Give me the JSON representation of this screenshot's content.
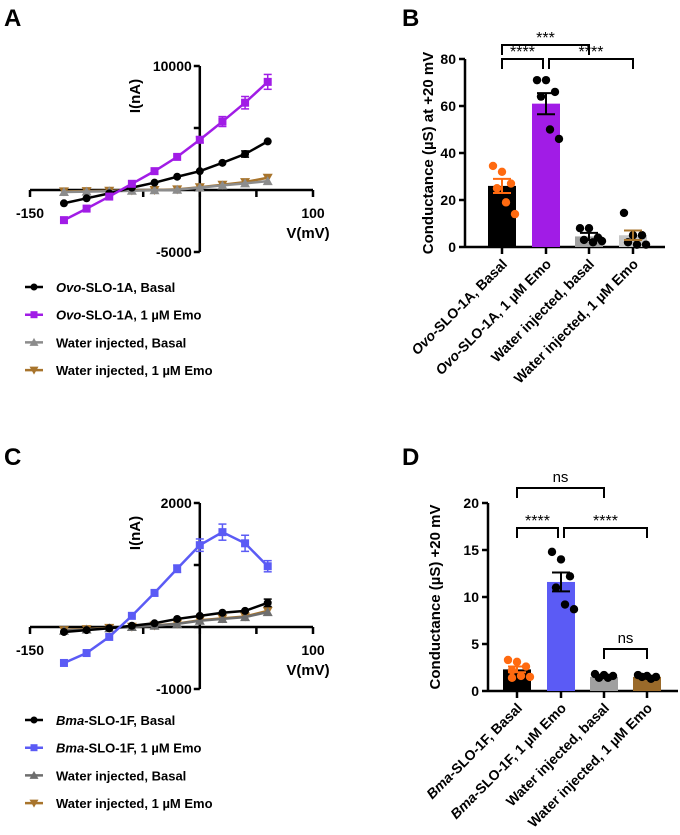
{
  "panels": {
    "A": "A",
    "B": "B",
    "C": "C",
    "D": "D"
  },
  "chart_data": [
    {
      "panel": "A",
      "type": "line",
      "xlabel": "V(mV)",
      "ylabel": "I(nA)",
      "xlim": [
        -150,
        100
      ],
      "ylim": [
        -5000,
        10000
      ],
      "x_tick_labels": [
        "-150",
        "100"
      ],
      "y_tick_labels": [
        "10000",
        "-5000"
      ],
      "x": [
        -120,
        -100,
        -80,
        -60,
        -40,
        -20,
        0,
        20,
        40,
        60
      ],
      "series": [
        {
          "name": "Ovo-SLO-1A, Basal",
          "italic": "Ovo",
          "color": "#000000",
          "marker": "circle",
          "values": [
            -1070,
            -670,
            -270,
            190,
            590,
            1070,
            1520,
            2190,
            2900,
            3920
          ],
          "err": [
            80,
            80,
            60,
            60,
            80,
            100,
            150,
            200,
            250,
            200
          ]
        },
        {
          "name": "Ovo-SLO-1A, 1 µM Emo",
          "italic": "Ovo",
          "color": "#A11CE6",
          "marker": "square",
          "values": [
            -2430,
            -1500,
            -530,
            500,
            1520,
            2670,
            4050,
            5520,
            7040,
            8720
          ],
          "err": [
            100,
            100,
            80,
            80,
            100,
            150,
            250,
            400,
            500,
            600
          ]
        },
        {
          "name": "Water injected, Basal",
          "color": "#8C8C8C",
          "marker": "triangle-up",
          "values": [
            -160,
            -130,
            -100,
            -60,
            -20,
            20,
            190,
            370,
            530,
            720
          ],
          "err": [
            40,
            40,
            40,
            40,
            40,
            40,
            60,
            60,
            80,
            100
          ]
        },
        {
          "name": "Water injected, 1 µM Emo",
          "color": "#A8742C",
          "marker": "triangle-down",
          "values": [
            -110,
            -90,
            -60,
            -30,
            0,
            50,
            220,
            420,
            640,
            990
          ],
          "err": [
            40,
            40,
            40,
            40,
            40,
            40,
            60,
            60,
            80,
            120
          ]
        }
      ],
      "legend": "below"
    },
    {
      "panel": "B",
      "type": "bar",
      "ylabel": "Conductance (µS) at +20 mV",
      "ylim": [
        0,
        80
      ],
      "y_tick_labels": [
        "0",
        "20",
        "40",
        "60",
        "80"
      ],
      "categories": [
        "Ovo-SLO-1A, Basal",
        "Ovo-SLO-1A, 1 µM Emo",
        "Water injected, basal",
        "Water injected, 1 µM Emo"
      ],
      "italic": [
        "Ovo",
        "Ovo",
        "",
        ""
      ],
      "values": [
        26,
        61,
        4.5,
        5
      ],
      "err": [
        3,
        4.5,
        1.5,
        2
      ],
      "bar_colors": [
        "#000000",
        "#A11CE6",
        "#A0A0A0",
        "#C8C8C8"
      ],
      "point_colors": [
        "#FF6A10",
        "#000000",
        "#000000",
        "#000000"
      ],
      "err_colors": [
        "#FF6A10",
        "#000000",
        "#000000",
        "#A8742C"
      ],
      "points": [
        [
          34.5,
          32,
          27,
          25,
          19,
          14
        ],
        [
          71,
          71,
          66,
          64,
          50,
          46
        ],
        [
          8,
          8,
          4,
          3,
          2,
          2.5
        ],
        [
          14.5,
          5,
          5,
          2,
          1,
          1
        ]
      ],
      "significance": [
        {
          "from": 0,
          "to": 2,
          "label": "***",
          "level": 0
        },
        {
          "from": 0,
          "to": 1,
          "label": "****",
          "level": 1
        },
        {
          "from": 1,
          "to": 3,
          "label": "****",
          "level": 1
        }
      ]
    },
    {
      "panel": "C",
      "type": "line",
      "xlabel": "V(mV)",
      "ylabel": "I(nA)",
      "xlim": [
        -150,
        100
      ],
      "ylim": [
        -1000,
        2000
      ],
      "x_tick_labels": [
        "-150",
        "100"
      ],
      "y_tick_labels": [
        "2000",
        "-1000"
      ],
      "x": [
        -120,
        -100,
        -80,
        -60,
        -40,
        -20,
        0,
        20,
        40,
        60
      ],
      "series": [
        {
          "name": "Bma-SLO-1F, Basal",
          "italic": "Bma",
          "color": "#000000",
          "marker": "circle",
          "values": [
            -80,
            -50,
            -20,
            20,
            60,
            130,
            180,
            230,
            260,
            390
          ],
          "err": [
            15,
            15,
            15,
            15,
            15,
            20,
            25,
            25,
            30,
            60
          ]
        },
        {
          "name": "Bma-SLO-1F, 1 µM Emo",
          "italic": "Bma",
          "color": "#5B5BF5",
          "marker": "square",
          "values": [
            -580,
            -420,
            -160,
            180,
            550,
            940,
            1320,
            1530,
            1350,
            980
          ],
          "err": [
            30,
            30,
            30,
            40,
            50,
            60,
            100,
            130,
            130,
            90
          ]
        },
        {
          "name": "Water injected, Basal",
          "color": "#6E6E6E",
          "marker": "triangle-up",
          "values": [
            -60,
            -40,
            -20,
            0,
            20,
            50,
            100,
            130,
            160,
            240
          ],
          "err": [
            10,
            10,
            10,
            10,
            10,
            15,
            15,
            20,
            20,
            30
          ]
        },
        {
          "name": "Water injected, 1 µM Emo",
          "color": "#A8742C",
          "marker": "triangle-down",
          "values": [
            -50,
            -35,
            -15,
            5,
            25,
            55,
            110,
            140,
            170,
            260
          ],
          "err": [
            10,
            10,
            10,
            10,
            10,
            15,
            15,
            20,
            20,
            30
          ]
        }
      ],
      "legend": "below"
    },
    {
      "panel": "D",
      "type": "bar",
      "ylabel": "Conductance (µS) +20 mV",
      "ylim": [
        0,
        20
      ],
      "y_tick_labels": [
        "0",
        "5",
        "10",
        "15",
        "20"
      ],
      "categories": [
        "Bma-SLO-1F, Basal",
        "Bma-SLO-1F, 1 µM Emo",
        "Water injected, basal",
        "Water injected, 1 µM Emo"
      ],
      "italic": [
        "Bma",
        "Bma",
        "",
        ""
      ],
      "values": [
        2.3,
        11.6,
        1.5,
        1.5
      ],
      "err": [
        0.3,
        1.0,
        0.1,
        0.1
      ],
      "bar_colors": [
        "#000000",
        "#5B5BF5",
        "#A0A0A0",
        "#9A6A2A"
      ],
      "point_colors": [
        "#FF6A10",
        "#000000",
        "#000000",
        "#000000"
      ],
      "err_colors": [
        "#FF6A10",
        "#000000",
        "#000000",
        "#000000"
      ],
      "points": [
        [
          3.3,
          3.1,
          2.6,
          2.2,
          1.6,
          1.5,
          1.4
        ],
        [
          14.8,
          14,
          12.2,
          11,
          9.2,
          8.7
        ],
        [
          1.8,
          1.7,
          1.6,
          1.4,
          1.4
        ],
        [
          1.7,
          1.6,
          1.5,
          1.5,
          1.3
        ]
      ],
      "significance": [
        {
          "from": 0,
          "to": 2,
          "label": "ns",
          "level": 0
        },
        {
          "from": 0,
          "to": 1,
          "label": "****",
          "level": 1
        },
        {
          "from": 1,
          "to": 3,
          "label": "****",
          "level": 1
        },
        {
          "from": 2,
          "to": 3,
          "label": "ns",
          "level": 2
        }
      ]
    }
  ]
}
